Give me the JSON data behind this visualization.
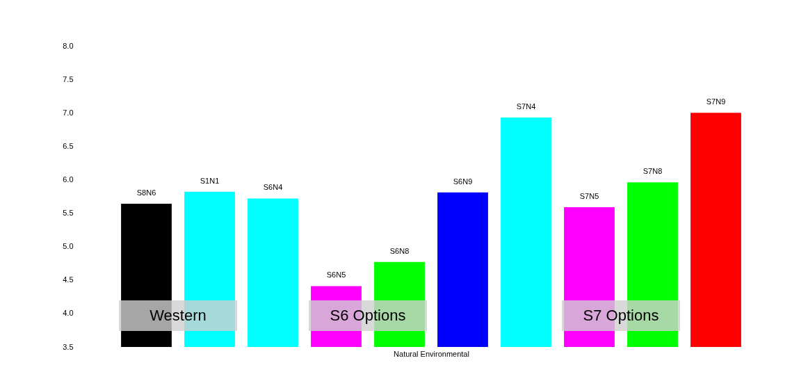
{
  "chart_data": {
    "type": "bar",
    "xlabel": "Natural Environmental",
    "categories": [
      "S8N6",
      "S1N1",
      "S6N4",
      "S6N5",
      "S6N8",
      "S6N9",
      "S7N4",
      "S7N5",
      "S7N8",
      "S7N9"
    ],
    "values": [
      5.64,
      5.82,
      5.72,
      4.41,
      4.77,
      5.81,
      6.93,
      5.59,
      5.96,
      7.0
    ],
    "colors": [
      "#000000",
      "#00ffff",
      "#00ffff",
      "#ff00ff",
      "#00ff00",
      "#0000ff",
      "#00ffff",
      "#ff00ff",
      "#00ff00",
      "#ff0000"
    ],
    "ylim": [
      3.5,
      8.0
    ],
    "yticks": [
      3.5,
      {
        "value": 4,
        "label": "4.0"
      },
      4.5,
      {
        "value": 5,
        "label": "5.0"
      },
      5.5,
      {
        "value": 6,
        "label": "6.0"
      },
      6.5,
      {
        "value": 7,
        "label": "7.0"
      },
      7.5,
      {
        "value": 8,
        "label": "8.0"
      }
    ],
    "grid": false,
    "annotations": [
      "Western",
      "S6 Options",
      "S7 Options"
    ]
  }
}
